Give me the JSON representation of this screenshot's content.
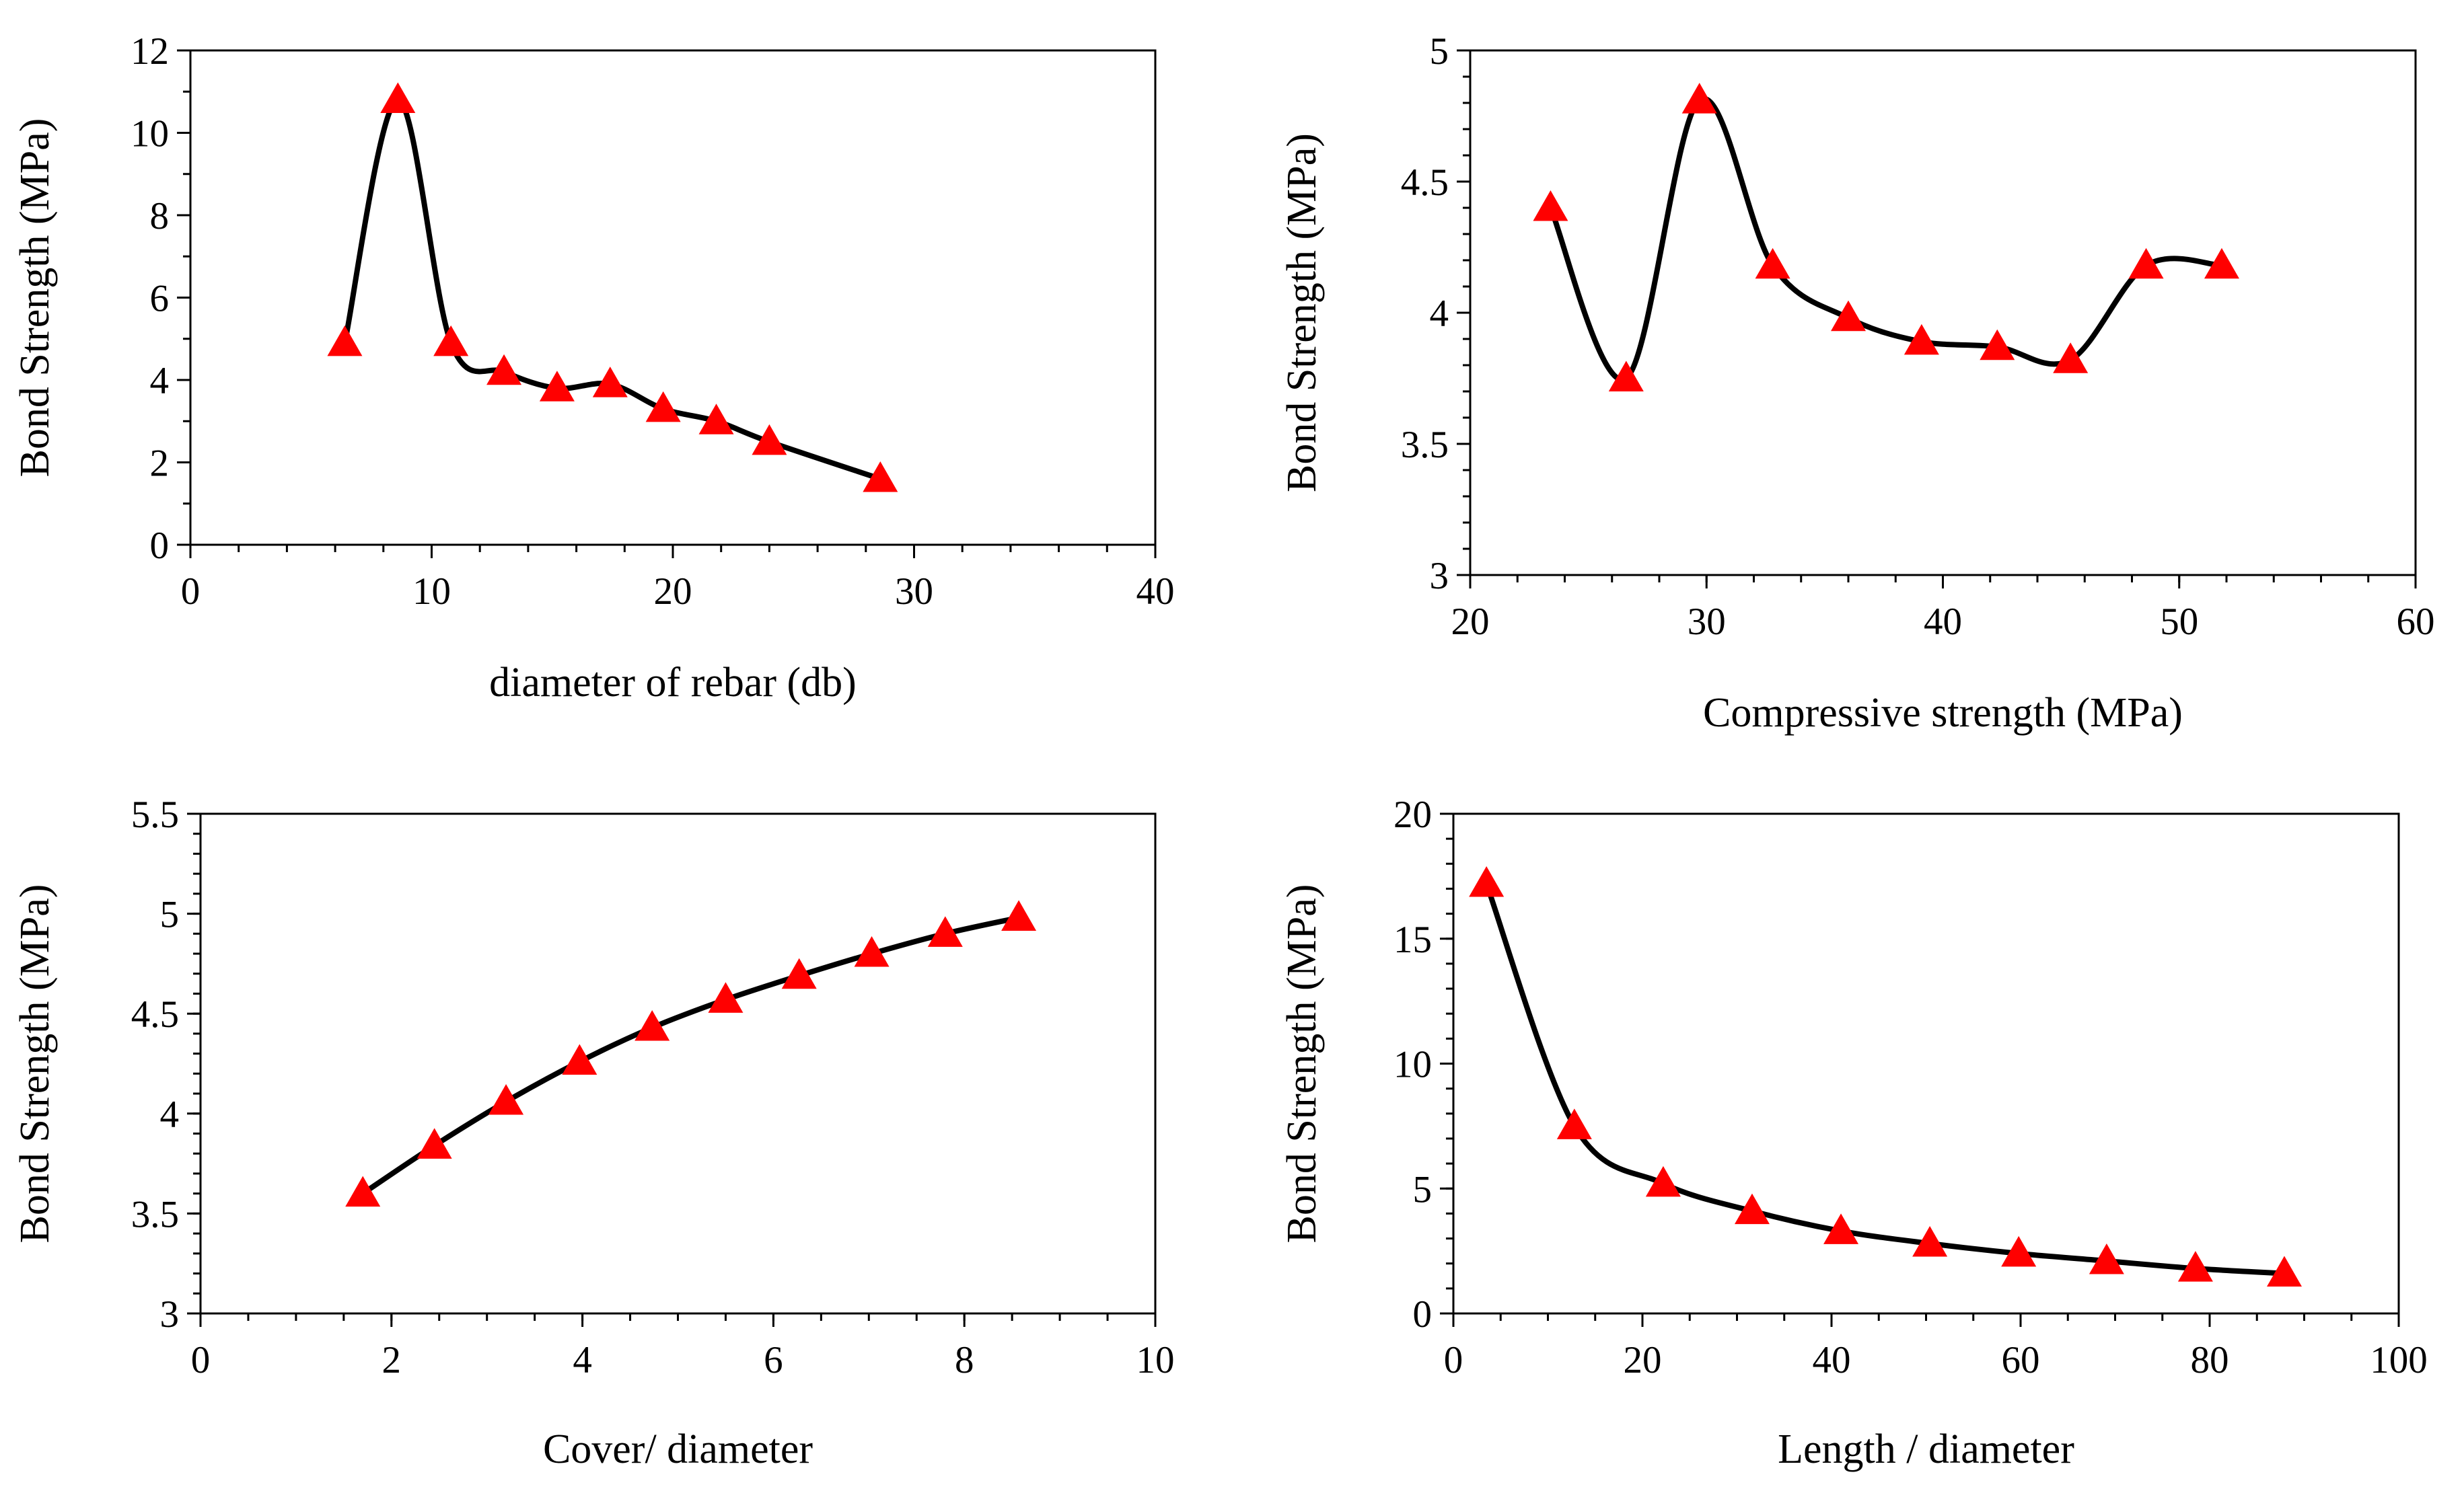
{
  "chart_data": [
    {
      "type": "line",
      "smooth": true,
      "title": "",
      "xlabel": "diameter of rebar (db)",
      "ylabel": "Bond Strength (MPa)",
      "xlim": [
        0,
        40
      ],
      "ylim": [
        0,
        12
      ],
      "xticks": [
        0,
        10,
        20,
        30,
        40
      ],
      "yticks": [
        0,
        2,
        4,
        6,
        8,
        10,
        12
      ],
      "x_minor_step": 2,
      "y_minor_step": 1,
      "grid": false,
      "marker": "triangle",
      "series": [
        {
          "name": "Bond Strength",
          "x": [
            6.4,
            8.6,
            10.8,
            13.0,
            15.2,
            17.4,
            19.6,
            21.8,
            24.0,
            28.6
          ],
          "y": [
            4.9,
            10.8,
            4.9,
            4.2,
            3.8,
            3.9,
            3.3,
            3.0,
            2.5,
            1.6
          ]
        }
      ]
    },
    {
      "type": "line",
      "smooth": true,
      "title": "",
      "xlabel": "Compressive strength (MPa)",
      "ylabel": "Bond Strength (MPa)",
      "xlim": [
        20,
        60
      ],
      "ylim": [
        3,
        5
      ],
      "xticks": [
        20,
        30,
        40,
        50,
        60
      ],
      "yticks": [
        3,
        3.5,
        4,
        4.5,
        5
      ],
      "x_minor_step": 2,
      "y_minor_step": 0.1,
      "grid": false,
      "marker": "triangle",
      "series": [
        {
          "name": "Bond Strength",
          "x": [
            23.4,
            26.6,
            29.7,
            32.8,
            36.0,
            39.1,
            42.3,
            45.4,
            48.6,
            51.8
          ],
          "y": [
            4.4,
            3.75,
            4.81,
            4.18,
            3.98,
            3.89,
            3.87,
            3.82,
            4.18,
            4.18
          ]
        }
      ]
    },
    {
      "type": "line",
      "smooth": true,
      "title": "",
      "xlabel": "Cover/ diameter",
      "ylabel": "Bond Strength (MPa)",
      "xlim": [
        0,
        10
      ],
      "ylim": [
        3,
        5.5
      ],
      "xticks": [
        0,
        2,
        4,
        6,
        8,
        10
      ],
      "yticks": [
        3,
        3.5,
        4,
        4.5,
        5,
        5.5
      ],
      "x_minor_step": 0.5,
      "y_minor_step": 0.1,
      "grid": false,
      "marker": "triangle",
      "series": [
        {
          "name": "Bond Strength",
          "x": [
            1.7,
            2.45,
            3.2,
            3.97,
            4.73,
            5.5,
            6.27,
            7.03,
            7.8,
            8.57
          ],
          "y": [
            3.6,
            3.84,
            4.06,
            4.26,
            4.43,
            4.57,
            4.69,
            4.8,
            4.9,
            4.98
          ]
        }
      ]
    },
    {
      "type": "line",
      "smooth": true,
      "title": "",
      "xlabel": "Length / diameter",
      "ylabel": "Bond Strength (MPa)",
      "xlim": [
        0,
        100
      ],
      "ylim": [
        0,
        20
      ],
      "xticks": [
        0,
        20,
        40,
        60,
        80,
        100
      ],
      "yticks": [
        0,
        5,
        10,
        15,
        20
      ],
      "x_minor_step": 5,
      "y_minor_step": 1,
      "grid": false,
      "marker": "triangle",
      "series": [
        {
          "name": "Bond Strength",
          "x": [
            3.5,
            12.8,
            22.2,
            31.6,
            41.0,
            50.4,
            59.8,
            69.1,
            78.5,
            87.9
          ],
          "y": [
            17.2,
            7.5,
            5.2,
            4.1,
            3.3,
            2.8,
            2.4,
            2.1,
            1.8,
            1.6
          ]
        }
      ]
    }
  ],
  "colors": {
    "line": "#000000",
    "marker": "#ff0000",
    "axis": "#000000"
  }
}
